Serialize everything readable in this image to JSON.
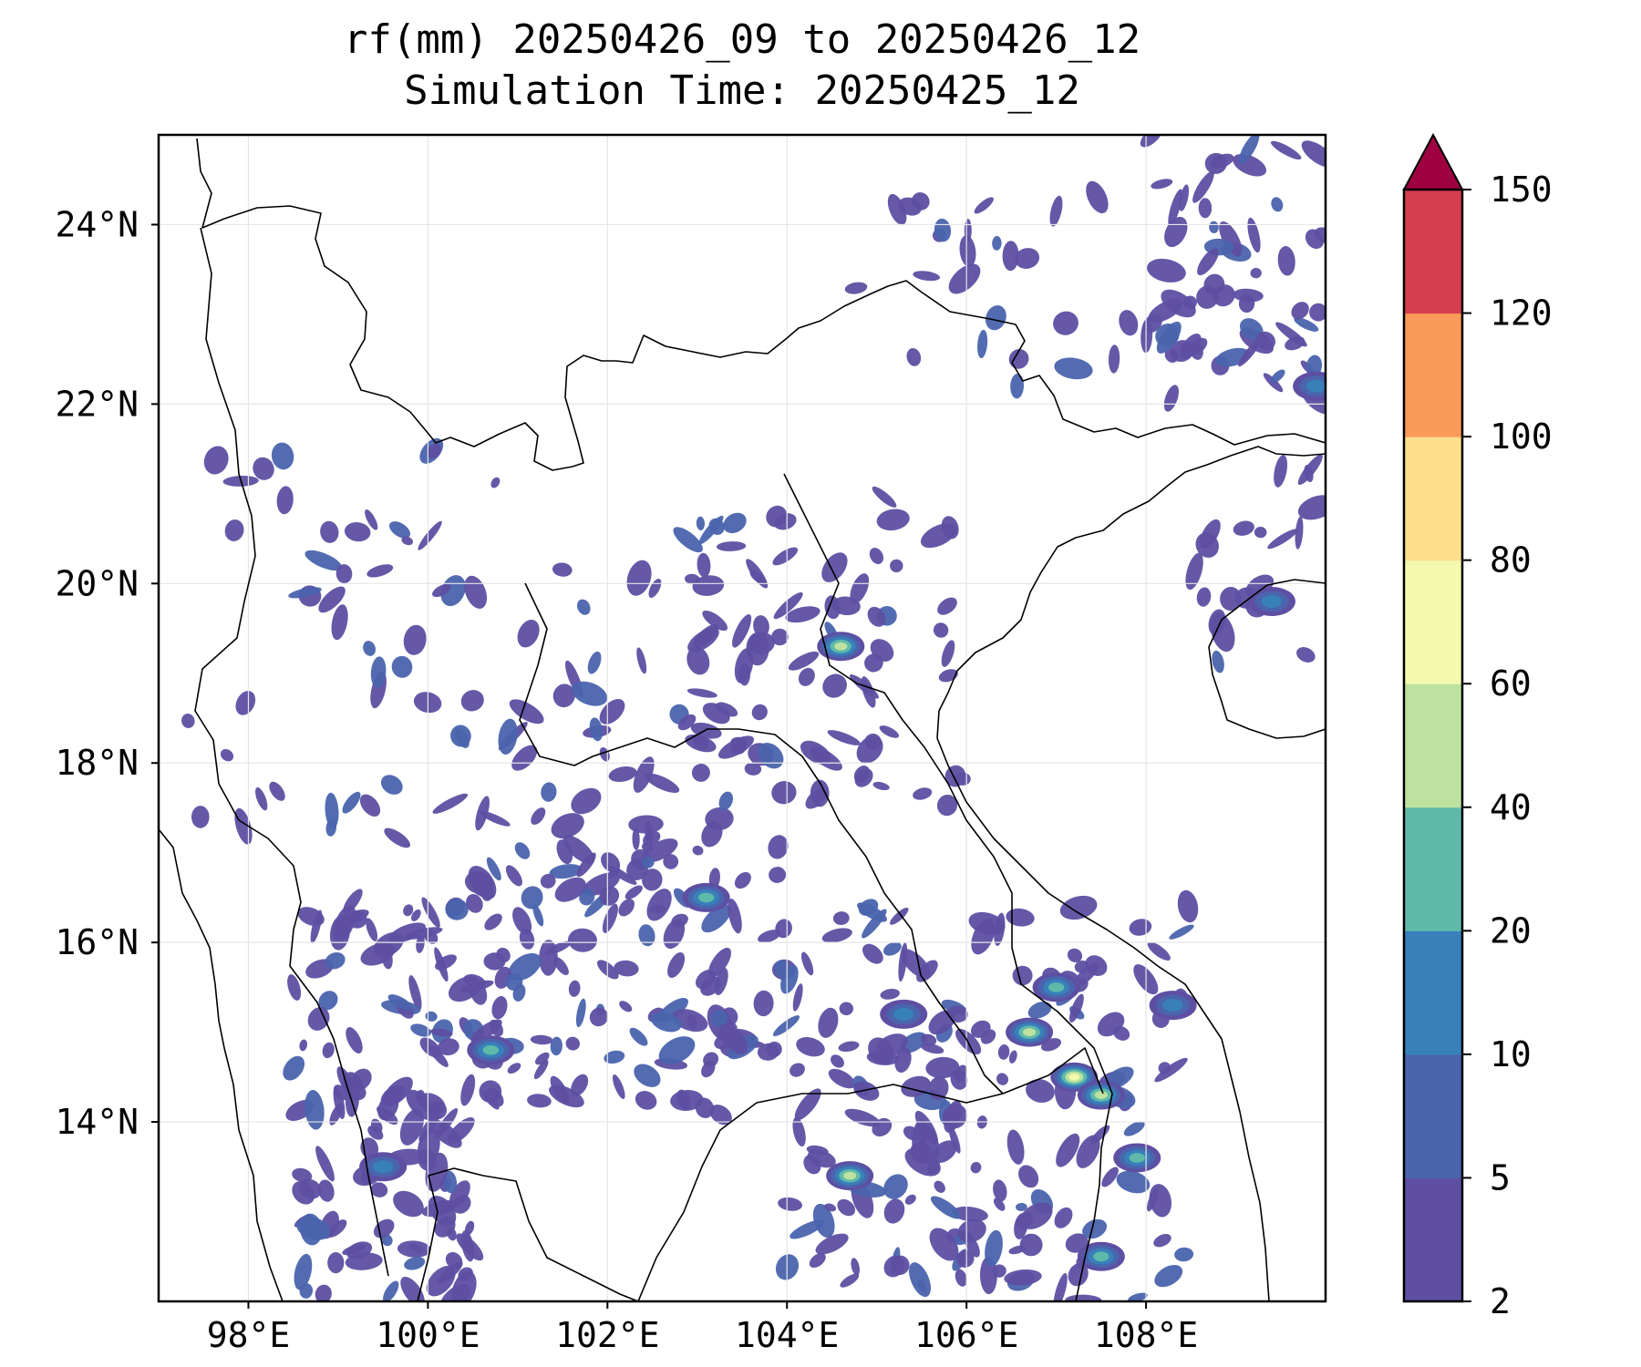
{
  "title": {
    "line1": "rf(mm) 20250426_09 to 20250426_12",
    "line2": "Simulation Time: 20250425_12"
  },
  "map": {
    "extent": {
      "lon": [
        97.0,
        110.0
      ],
      "lat": [
        12.0,
        25.0
      ]
    },
    "x_ticks": [
      {
        "value": 98,
        "label": "98°E"
      },
      {
        "value": 100,
        "label": "100°E"
      },
      {
        "value": 102,
        "label": "102°E"
      },
      {
        "value": 104,
        "label": "104°E"
      },
      {
        "value": 106,
        "label": "106°E"
      },
      {
        "value": 108,
        "label": "108°E"
      }
    ],
    "y_ticks": [
      {
        "value": 24,
        "label": "24°N"
      },
      {
        "value": 22,
        "label": "22°N"
      },
      {
        "value": 20,
        "label": "20°N"
      },
      {
        "value": 18,
        "label": "18°N"
      },
      {
        "value": 16,
        "label": "16°N"
      },
      {
        "value": 14,
        "label": "14°N"
      }
    ],
    "grid": true
  },
  "colorbar": {
    "levels": [
      2,
      5,
      10,
      20,
      40,
      60,
      80,
      100,
      120,
      150
    ],
    "level_labels": [
      "2",
      "5",
      "10",
      "20",
      "40",
      "60",
      "80",
      "100",
      "120",
      "150"
    ],
    "colors": [
      "#5e4fa2",
      "#4a64ad",
      "#3880ba",
      "#5fb9a9",
      "#bde2a0",
      "#f3f9ae",
      "#fedf8c",
      "#f99a59",
      "#d53e4f"
    ],
    "extend_color": "#9e0142",
    "extend": "max"
  },
  "rain_cells": [
    {
      "lon": 107.2,
      "lat": 14.5,
      "level": 5
    },
    {
      "lon": 107.5,
      "lat": 14.3,
      "level": 4
    },
    {
      "lon": 106.7,
      "lat": 15.0,
      "level": 4
    },
    {
      "lon": 104.6,
      "lat": 19.3,
      "level": 4
    },
    {
      "lon": 104.7,
      "lat": 13.4,
      "level": 4
    },
    {
      "lon": 107.9,
      "lat": 13.6,
      "level": 3
    },
    {
      "lon": 107.0,
      "lat": 15.5,
      "level": 3
    },
    {
      "lon": 107.5,
      "lat": 12.5,
      "level": 3
    },
    {
      "lon": 100.7,
      "lat": 14.8,
      "level": 3
    },
    {
      "lon": 103.1,
      "lat": 16.5,
      "level": 3
    },
    {
      "lon": 109.4,
      "lat": 19.8,
      "level": 2
    },
    {
      "lon": 109.9,
      "lat": 22.2,
      "level": 2
    },
    {
      "lon": 108.3,
      "lat": 15.3,
      "level": 2
    },
    {
      "lon": 105.3,
      "lat": 15.2,
      "level": 2
    },
    {
      "lon": 99.5,
      "lat": 13.5,
      "level": 2
    }
  ]
}
